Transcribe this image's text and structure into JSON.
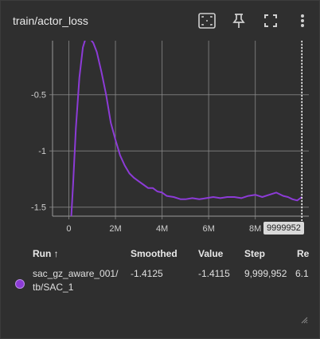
{
  "header": {
    "title": "train/actor_loss",
    "icons": [
      "fit-domain-icon",
      "pin-icon",
      "fullscreen-icon",
      "more-vert-icon"
    ]
  },
  "chart_data": {
    "type": "line",
    "title": "",
    "xlabel": "",
    "ylabel": "",
    "x_tick_labels": [
      "0",
      "2M",
      "4M",
      "6M",
      "8M"
    ],
    "x_ticks": [
      0,
      2000000,
      4000000,
      6000000,
      8000000
    ],
    "y_tick_labels": [
      "-0.5",
      "-1",
      "-1.5"
    ],
    "y_ticks": [
      -0.5,
      -1,
      -1.5
    ],
    "xlim": [
      -700000,
      10300000
    ],
    "ylim": [
      -1.58,
      -0.02
    ],
    "grid": true,
    "hover_step_label": "9999952",
    "hover_step": 9999952,
    "series": [
      {
        "color": "#8c3bd6",
        "x": [
          100000,
          180000,
          300000,
          450000,
          600000,
          750000,
          900000,
          1050000,
          1200000,
          1400000,
          1600000,
          1800000,
          2000000,
          2200000,
          2400000,
          2600000,
          2800000,
          3000000,
          3200000,
          3400000,
          3600000,
          3800000,
          4000000,
          4200000,
          4500000,
          4800000,
          5000000,
          5300000,
          5600000,
          5900000,
          6200000,
          6500000,
          6800000,
          7100000,
          7400000,
          7700000,
          8000000,
          8300000,
          8600000,
          8900000,
          9200000,
          9400000,
          9600000,
          9800000,
          9999952
        ],
        "y": [
          -1.6,
          -1.3,
          -0.8,
          -0.35,
          -0.08,
          0.02,
          0.0,
          -0.04,
          -0.12,
          -0.3,
          -0.5,
          -0.75,
          -0.9,
          -1.04,
          -1.13,
          -1.2,
          -1.24,
          -1.27,
          -1.3,
          -1.33,
          -1.33,
          -1.36,
          -1.37,
          -1.4,
          -1.41,
          -1.43,
          -1.43,
          -1.42,
          -1.43,
          -1.42,
          -1.41,
          -1.42,
          -1.41,
          -1.41,
          -1.42,
          -1.4,
          -1.39,
          -1.41,
          -1.39,
          -1.37,
          -1.4,
          -1.41,
          -1.43,
          -1.44,
          -1.41
        ]
      }
    ]
  },
  "table": {
    "headers": {
      "run": "Run ↑",
      "smoothed": "Smoothed",
      "value": "Value",
      "step": "Step",
      "relative": "Re"
    },
    "rows": [
      {
        "run_line1": "sac_gz_aware_001/",
        "run_line2": "tb/SAC_1",
        "smoothed": "-1.4125",
        "value": "-1.4115",
        "step": "9,999,952",
        "relative": "6.1",
        "color": "#8c3bd6"
      }
    ]
  }
}
